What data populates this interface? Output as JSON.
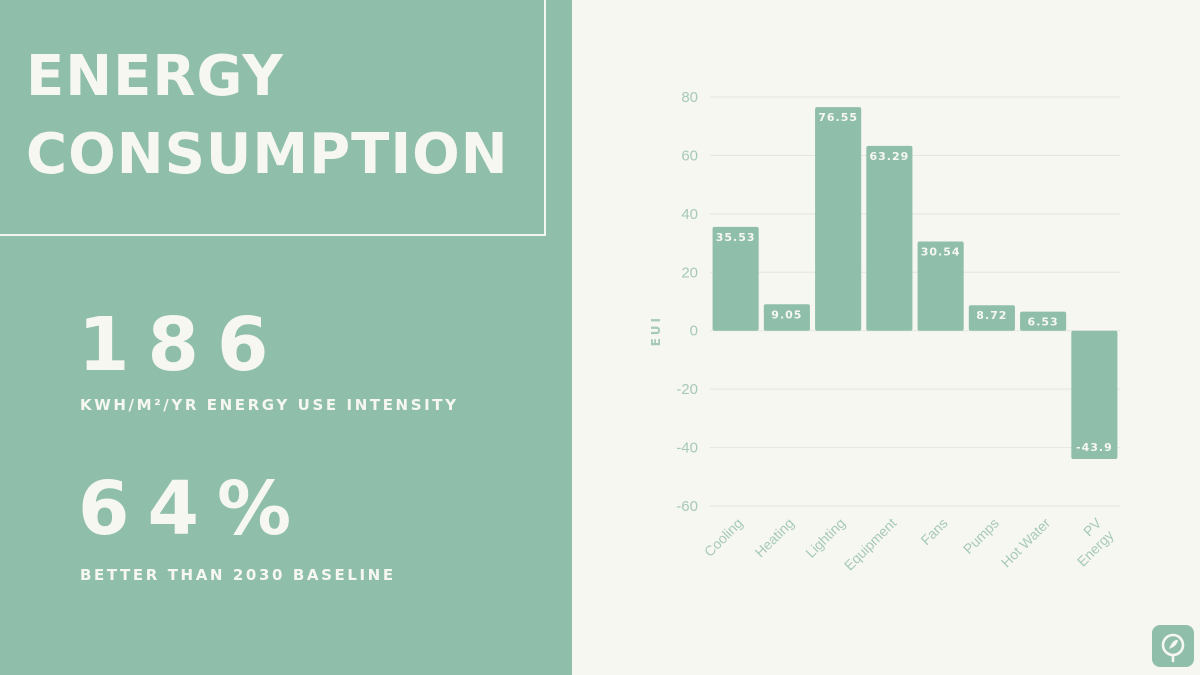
{
  "title": {
    "line1": "ENERGY",
    "line2": "CONSUMPTION"
  },
  "stats": [
    {
      "value": "186",
      "label": "KWH/M²/YR ENERGY USE INTENSITY"
    },
    {
      "value": "64%",
      "label": "BETTER THAN 2030 BASELINE"
    }
  ],
  "colors": {
    "panel": "#8fbfaa",
    "background": "#f7f7f2",
    "text_light": "#f7f7f2",
    "axis_text": "#a6c9b8"
  },
  "logo": {
    "icon": "leaf-icon"
  },
  "chart_data": {
    "type": "bar",
    "categories": [
      "Cooling",
      "Heating",
      "Lighting",
      "Equipment",
      "Fans",
      "Pumps",
      "Hot Water",
      "PV Energy"
    ],
    "category_label_lines": [
      [
        "Cooling"
      ],
      [
        "Heating"
      ],
      [
        "Lighting"
      ],
      [
        "Equipment"
      ],
      [
        "Fans"
      ],
      [
        "Pumps"
      ],
      [
        "Hot Water"
      ],
      [
        "PV",
        "Energy"
      ]
    ],
    "values": [
      35.53,
      9.05,
      76.55,
      63.29,
      30.54,
      8.72,
      6.53,
      -43.9
    ],
    "data_labels": [
      "35.53",
      "9.05",
      "76.55",
      "63.29",
      "30.54",
      "8.72",
      "6.53",
      "-43.9"
    ],
    "ylabel": "EUI",
    "xlabel": "",
    "ylim": [
      -60,
      80
    ],
    "yticks": [
      80,
      60,
      40,
      20,
      0,
      -20,
      -40,
      -60
    ],
    "grid": true,
    "legend": "none"
  }
}
